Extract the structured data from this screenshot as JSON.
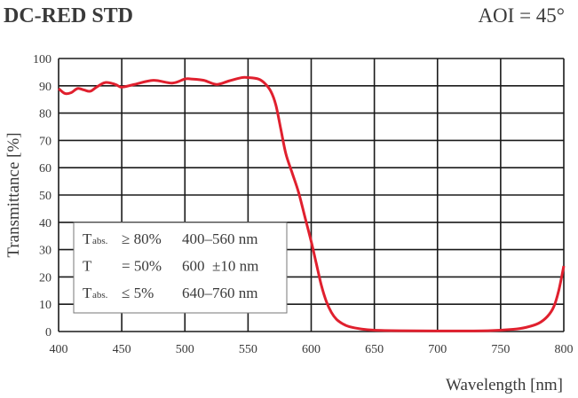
{
  "chart_data": {
    "type": "line",
    "title": "DC-RED STD",
    "subtitle": "AOI = 45°",
    "xlabel": "Wavelength [nm]",
    "ylabel": "Transmittance [%]",
    "xlim": [
      400,
      800
    ],
    "ylim": [
      0,
      100
    ],
    "xticks": [
      400,
      450,
      500,
      550,
      600,
      650,
      700,
      750,
      800
    ],
    "yticks": [
      0,
      10,
      20,
      30,
      40,
      50,
      60,
      70,
      80,
      90,
      100
    ],
    "grid": true,
    "line_color": "#e0202e",
    "series": [
      {
        "x": [
          400,
          405,
          410,
          415,
          420,
          425,
          430,
          437,
          445,
          450,
          460,
          475,
          490,
          500,
          505,
          515,
          525,
          535,
          545,
          550,
          558,
          563,
          568,
          572,
          576,
          580,
          585,
          590,
          595,
          600,
          604,
          608,
          612,
          616,
          620,
          625,
          630,
          640,
          650,
          670,
          700,
          740,
          760,
          770,
          780,
          787,
          792,
          796,
          800
        ],
        "y": [
          89,
          87.2,
          87.5,
          89,
          88.5,
          88,
          89.5,
          91.2,
          90.5,
          89.5,
          90.5,
          92,
          91,
          92.5,
          92.5,
          92,
          90.5,
          91.8,
          93,
          93,
          92.5,
          91,
          88,
          83,
          74,
          65,
          58,
          51,
          42,
          33,
          25,
          17,
          11,
          7,
          4.5,
          2.8,
          1.8,
          0.9,
          0.5,
          0.3,
          0.2,
          0.3,
          0.8,
          1.5,
          3,
          5.5,
          9,
          15,
          24
        ]
      }
    ],
    "annotation": {
      "rows": [
        {
          "symbol": "T",
          "sub": "abs.",
          "cond": "≥ 80%",
          "range": "400–560 nm"
        },
        {
          "symbol": "T",
          "sub": "",
          "cond": "= 50%",
          "range": "600  ±10 nm"
        },
        {
          "symbol": "T",
          "sub": "abs.",
          "cond": "≤   5%",
          "range": "640–760 nm"
        }
      ]
    }
  }
}
